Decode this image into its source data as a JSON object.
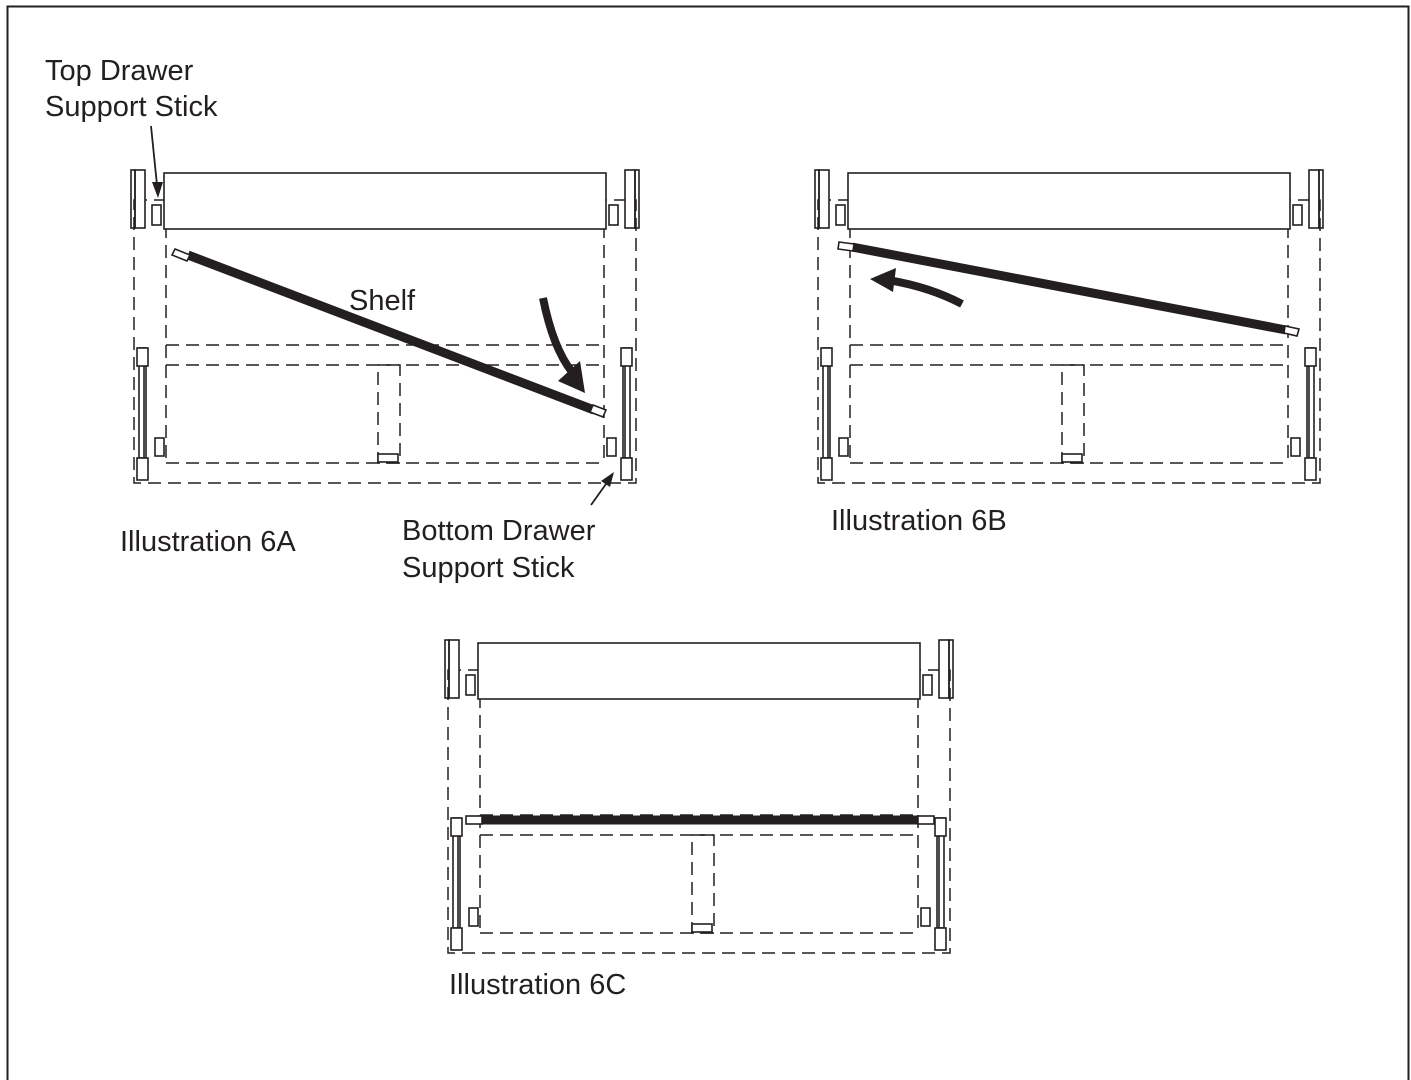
{
  "labels": {
    "top_drawer_support_stick": [
      "Top Drawer",
      "Support Stick"
    ],
    "bottom_drawer_support_stick": [
      "Bottom Drawer",
      "Support Stick"
    ],
    "shelf": "Shelf",
    "illustration_6a": "Illustration 6A",
    "illustration_6b": "Illustration 6B",
    "illustration_6c": "Illustration 6C"
  },
  "colors": {
    "ink": "#231f20",
    "background": "#ffffff"
  }
}
